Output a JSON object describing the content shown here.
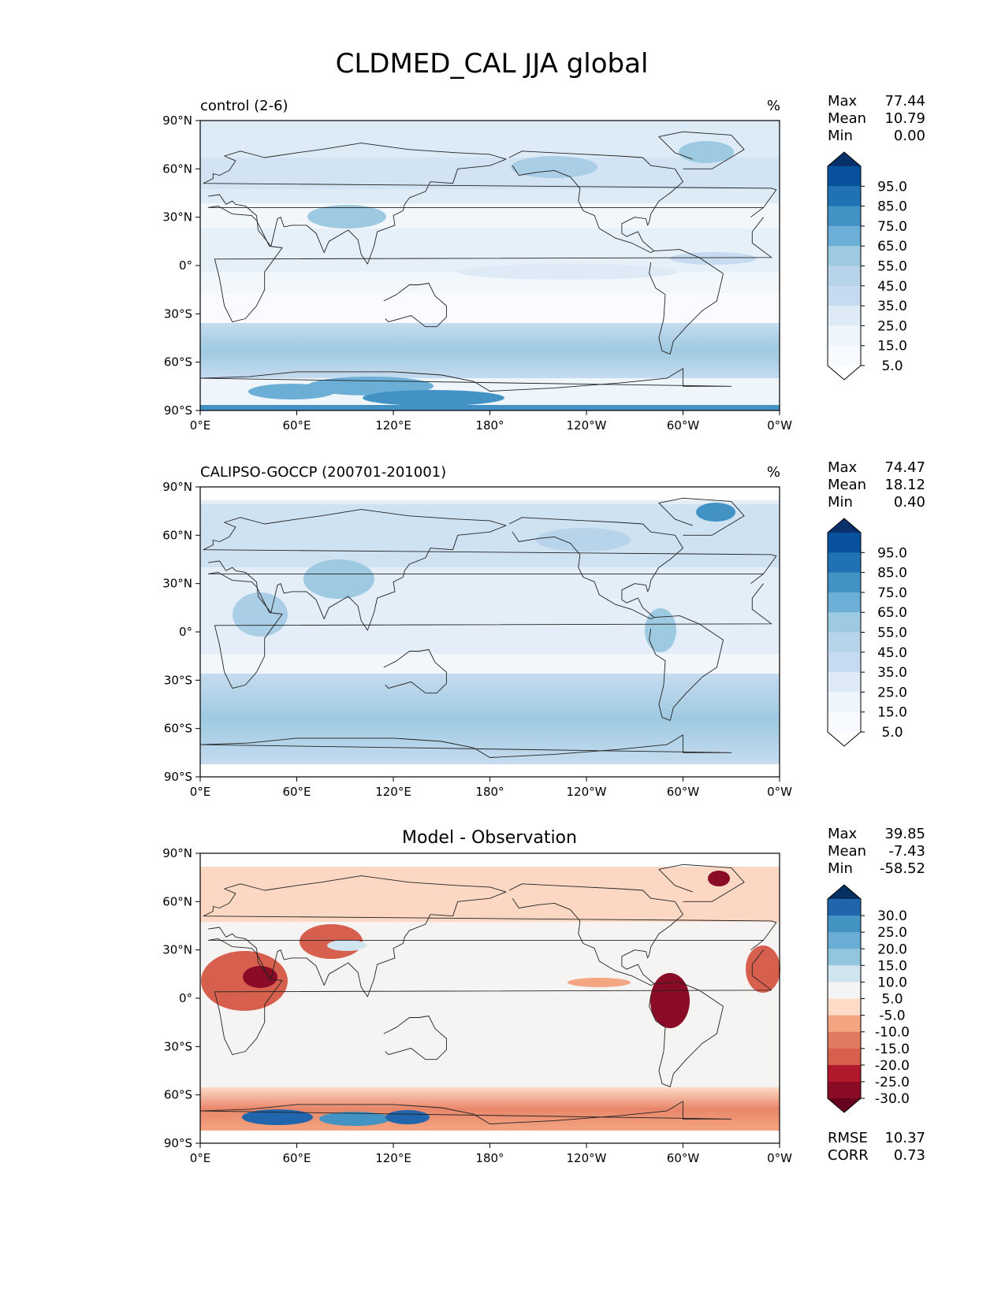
{
  "figure": {
    "title": "CLDMED_CAL JJA global"
  },
  "axes": {
    "lat_ticks": [
      "90°N",
      "60°N",
      "30°N",
      "0°",
      "30°S",
      "60°S",
      "90°S"
    ],
    "lon_ticks": [
      "0°E",
      "60°E",
      "120°E",
      "180°",
      "120°W",
      "60°W",
      "0°W"
    ]
  },
  "panels": [
    {
      "id": "control",
      "left_title": "control (2-6)",
      "center_title": "",
      "units": "%",
      "stats": [
        {
          "label": "Max",
          "value": "77.44"
        },
        {
          "label": "Mean",
          "value": "10.79"
        },
        {
          "label": "Min",
          "value": "0.00"
        }
      ],
      "colorbar": {
        "labels": [
          "95.0",
          "85.0",
          "75.0",
          "65.0",
          "55.0",
          "45.0",
          "35.0",
          "25.0",
          "15.0",
          "5.0"
        ],
        "colors": [
          "#08306b",
          "#08519c",
          "#2171b5",
          "#4292c6",
          "#6baed6",
          "#9ecae1",
          "#b7d4ea",
          "#c6dbef",
          "#deebf7",
          "#eef5fb",
          "#f7fbff",
          "#ffffff"
        ]
      },
      "extra_stats": []
    },
    {
      "id": "observation",
      "left_title": "CALIPSO-GOCCP (200701-201001)",
      "center_title": "",
      "units": "%",
      "stats": [
        {
          "label": "Max",
          "value": "74.47"
        },
        {
          "label": "Mean",
          "value": "18.12"
        },
        {
          "label": "Min",
          "value": "0.40"
        }
      ],
      "colorbar": {
        "labels": [
          "95.0",
          "85.0",
          "75.0",
          "65.0",
          "55.0",
          "45.0",
          "35.0",
          "25.0",
          "15.0",
          "5.0"
        ],
        "colors": [
          "#08306b",
          "#08519c",
          "#2171b5",
          "#4292c6",
          "#6baed6",
          "#9ecae1",
          "#b7d4ea",
          "#c6dbef",
          "#deebf7",
          "#eef5fb",
          "#f7fbff",
          "#ffffff"
        ]
      },
      "extra_stats": []
    },
    {
      "id": "difference",
      "left_title": "",
      "center_title": "Model - Observation",
      "units": "",
      "stats": [
        {
          "label": "Max",
          "value": "39.85"
        },
        {
          "label": "Mean",
          "value": "-7.43"
        },
        {
          "label": "Min",
          "value": "-58.52"
        }
      ],
      "colorbar": {
        "labels": [
          "30.0",
          "25.0",
          "20.0",
          "15.0",
          "10.0",
          "5.0",
          "-5.0",
          "-10.0",
          "-15.0",
          "-20.0",
          "-25.0",
          "-30.0"
        ],
        "colors": [
          "#053061",
          "#2166ac",
          "#4393c3",
          "#6aaed6",
          "#92c5de",
          "#d1e5f0",
          "#f4f4f4",
          "#fddbc7",
          "#f4a582",
          "#e07b62",
          "#d6604d",
          "#b2182b",
          "#8a0b25",
          "#67001f"
        ]
      },
      "extra_stats": [
        {
          "label": "RMSE",
          "value": "10.37"
        },
        {
          "label": "CORR",
          "value": "0.73"
        }
      ]
    }
  ]
}
